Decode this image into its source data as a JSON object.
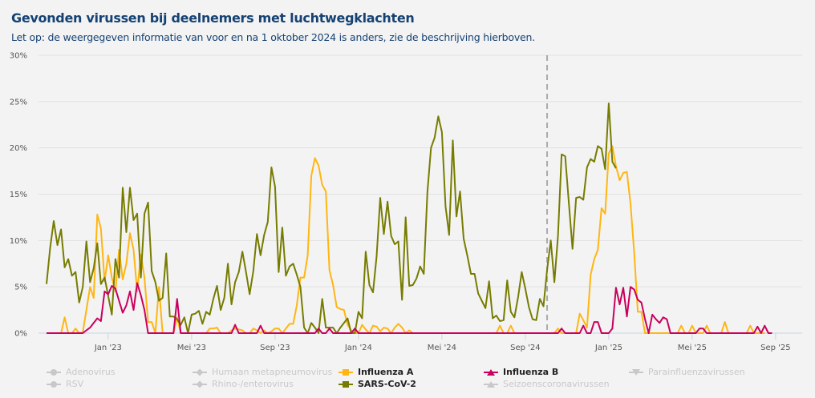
{
  "title": "Gevonden virussen bij deelnemers met luchtwegklachten",
  "subtitle": "Let op: de weergegeven informatie van voor en na 1 oktober 2024 is anders, zie de beschrijving hierboven.",
  "chart_data": {
    "type": "line",
    "title": "Gevonden virussen bij deelnemers met luchtwegklachten",
    "xlabel": "",
    "ylabel": "",
    "ylim": [
      0,
      30
    ],
    "y_ticks": [
      "0%",
      "5%",
      "10%",
      "15%",
      "20%",
      "25%",
      "30%"
    ],
    "y_tick_values": [
      0,
      5,
      10,
      15,
      20,
      25,
      30
    ],
    "x_ticks": [
      "Jan '23",
      "Mei '23",
      "Sep '23",
      "Jan '24",
      "Mei '24",
      "Sep '24",
      "Jan '25",
      "Mei '25",
      "Sep '25"
    ],
    "x_tick_weeks": [
      17,
      40,
      63,
      86,
      109,
      132,
      155,
      178,
      201
    ],
    "x_range_weeks": [
      0,
      205
    ],
    "divider_week": 138,
    "divider_label": "1 oktober 2024",
    "grid": true,
    "legend_position": "bottom",
    "series": [
      {
        "name": "Influenza A",
        "color": "#ffb612",
        "active": true,
        "values": [
          0,
          0,
          0,
          0,
          0,
          1.7,
          0,
          0,
          0.5,
          0,
          0.1,
          2.5,
          5,
          3.8,
          12.8,
          11.3,
          5.6,
          8.4,
          6,
          4.5,
          9,
          5.8,
          7.5,
          10.8,
          9,
          4.5,
          8.5,
          6,
          1.2,
          1.2,
          0,
          5,
          0,
          0,
          0,
          0,
          1.7,
          0,
          0,
          0,
          0,
          0,
          0,
          0,
          0,
          0.5,
          0.5,
          0.6,
          0,
          0,
          0,
          0.3,
          0.5,
          0.4,
          0.3,
          0,
          0,
          0.5,
          0.3,
          0,
          0.3,
          0,
          0.2,
          0.5,
          0.5,
          0,
          0.5,
          1,
          1,
          3,
          6,
          6,
          8.4,
          17,
          18.9,
          18.1,
          16,
          15.3,
          6.8,
          5.2,
          2.8,
          2.6,
          2.5,
          0.9,
          0.3,
          0,
          0,
          0.9,
          0.4,
          0,
          0.8,
          0.7,
          0.2,
          0.6,
          0.5,
          0,
          0.6,
          1,
          0.6,
          0,
          0.3,
          0,
          0,
          0,
          0,
          0,
          0,
          0,
          0,
          0,
          0,
          0,
          0,
          0,
          0,
          0,
          0,
          0,
          0,
          0,
          0,
          0,
          0,
          0,
          0,
          0.8,
          0,
          0,
          0.8,
          0,
          0,
          0,
          0,
          0,
          0,
          0,
          0,
          0,
          0,
          0,
          0,
          0.5,
          0,
          0,
          0,
          0,
          0,
          2.1,
          1.4,
          0.6,
          6.3,
          8,
          9,
          13.5,
          12.9,
          19.4,
          20.2,
          18,
          16.5,
          17.3,
          17.4,
          14,
          8.7,
          2.3,
          2.3,
          0,
          0,
          0,
          0,
          0,
          0,
          0,
          0,
          0,
          0,
          0.8,
          0,
          0,
          0.8,
          0,
          0,
          0,
          0.8,
          0,
          0,
          0,
          0,
          1.2,
          0,
          0,
          0,
          0,
          0,
          0,
          0.8,
          0,
          0,
          0,
          0
        ]
      },
      {
        "name": "Influenza B",
        "color": "#ca005d",
        "active": true,
        "values": [
          0,
          0,
          0,
          0,
          0,
          0,
          0,
          0,
          0,
          0,
          0,
          0.3,
          0.6,
          1.1,
          1.6,
          1.3,
          4.5,
          4.2,
          5.1,
          4.8,
          3.5,
          2.2,
          3,
          4.5,
          2.5,
          5.4,
          4.1,
          2.5,
          0,
          0,
          0,
          0,
          0,
          0,
          0,
          0,
          3.7,
          0,
          0,
          0,
          0,
          0,
          0,
          0,
          0,
          0,
          0,
          0,
          0,
          0,
          0,
          0,
          0.9,
          0,
          0,
          0,
          0,
          0,
          0,
          0.8,
          0,
          0,
          0,
          0,
          0,
          0,
          0,
          0,
          0,
          0,
          0,
          0,
          0,
          0,
          0,
          0.5,
          0,
          0,
          0.5,
          0,
          0,
          0,
          0,
          0,
          0,
          0.5,
          0,
          0,
          0,
          0,
          0,
          0,
          0,
          0,
          0,
          0,
          0,
          0,
          0,
          0,
          0,
          0,
          0,
          0,
          0,
          0,
          0,
          0,
          0,
          0,
          0,
          0,
          0,
          0,
          0,
          0,
          0,
          0,
          0,
          0,
          0,
          0,
          0,
          0,
          0,
          0,
          0,
          0,
          0,
          0,
          0,
          0,
          0,
          0,
          0,
          0,
          0,
          0,
          0,
          0,
          0,
          0,
          0.5,
          0,
          0,
          0,
          0,
          0,
          0.8,
          0,
          0,
          1.2,
          1.2,
          0,
          0,
          0,
          0.5,
          4.9,
          3.1,
          4.9,
          1.8,
          5,
          4.7,
          3.6,
          3.3,
          1.5,
          0,
          2,
          1.5,
          1.1,
          1.7,
          1.5,
          0,
          0,
          0,
          0,
          0,
          0,
          0,
          0,
          0.5,
          0.5,
          0,
          0,
          0,
          0,
          0,
          0,
          0,
          0,
          0,
          0,
          0,
          0,
          0,
          0,
          0.7,
          0,
          0.8,
          0,
          0
        ]
      },
      {
        "name": "SARS-CoV-2",
        "color": "#777c00",
        "active": true,
        "values": [
          5.3,
          9.2,
          12.1,
          9.5,
          11.2,
          7.1,
          8,
          6.2,
          6.6,
          3.3,
          5,
          9.9,
          5.5,
          7,
          9.7,
          5.3,
          6,
          4,
          2,
          8,
          6,
          15.7,
          10.9,
          15.7,
          12.2,
          12.9,
          6,
          12.9,
          14.1,
          6.7,
          5.5,
          3.5,
          3.8,
          8.6,
          1.8,
          1.8,
          1.5,
          0.9,
          1.7,
          0,
          2,
          2.1,
          2.4,
          1,
          2.3,
          2,
          3.7,
          5.1,
          2.5,
          3.8,
          7.5,
          3.1,
          5.5,
          6.6,
          8.8,
          6.6,
          4.2,
          6.7,
          10.7,
          8.4,
          10.6,
          12,
          17.9,
          15.8,
          6.6,
          11.4,
          6.2,
          7.2,
          7.5,
          6.3,
          5,
          0.6,
          0,
          1.1,
          0.6,
          0,
          3.7,
          0.6,
          0.6,
          0.6,
          0,
          0.6,
          1.1,
          1.6,
          0,
          0,
          2.3,
          1.6,
          8.8,
          5.2,
          4.4,
          8.3,
          14.6,
          10.7,
          14.2,
          10.5,
          9.6,
          9.9,
          3.6,
          12.5,
          5.1,
          5.2,
          5.9,
          7.2,
          6.4,
          15.2,
          20,
          21.1,
          23.4,
          21.7,
          13.7,
          10.6,
          20.8,
          12.6,
          15.3,
          10.2,
          8.4,
          6.4,
          6.4,
          4.3,
          3.5,
          2.7,
          5.6,
          1.6,
          1.9,
          1.3,
          1.4,
          5.7,
          2.3,
          1.7,
          3.9,
          6.6,
          4.8,
          2.8,
          1.5,
          1.4,
          3.7,
          2.9,
          6.8,
          10,
          5.5,
          10.5,
          19.3,
          19.1,
          14,
          9.1,
          14.6,
          14.7,
          14.4,
          17.9,
          18.8,
          18.5,
          20.2,
          19.9,
          17.7,
          24.8,
          18.5,
          17.8
        ]
      }
    ],
    "inactive_series": [
      "Adenovirus",
      "RSV",
      "Humaan metapneumovirus",
      "Rhino-/enterovirus",
      "Parainfluenzavirussen",
      "Seizoenscoronavirussen"
    ]
  },
  "legend": [
    {
      "label": "Adenovirus",
      "color": "#c8c8c8",
      "active": false,
      "marker": "circle"
    },
    {
      "label": "RSV",
      "color": "#c8c8c8",
      "active": false,
      "marker": "circle"
    },
    {
      "label": "Humaan metapneumovirus",
      "color": "#c8c8c8",
      "active": false,
      "marker": "diamond"
    },
    {
      "label": "Rhino-/enterovirus",
      "color": "#c8c8c8",
      "active": false,
      "marker": "diamond"
    },
    {
      "label": "Influenza A",
      "color": "#ffb612",
      "active": true,
      "marker": "square"
    },
    {
      "label": "SARS-CoV-2",
      "color": "#777c00",
      "active": true,
      "marker": "square"
    },
    {
      "label": "Influenza B",
      "color": "#ca005d",
      "active": true,
      "marker": "triangle"
    },
    {
      "label": "Seizoenscoronavirussen",
      "color": "#c8c8c8",
      "active": false,
      "marker": "triangle"
    },
    {
      "label": "Parainfluenzavirussen",
      "color": "#c8c8c8",
      "active": false,
      "marker": "triangle-down"
    }
  ]
}
